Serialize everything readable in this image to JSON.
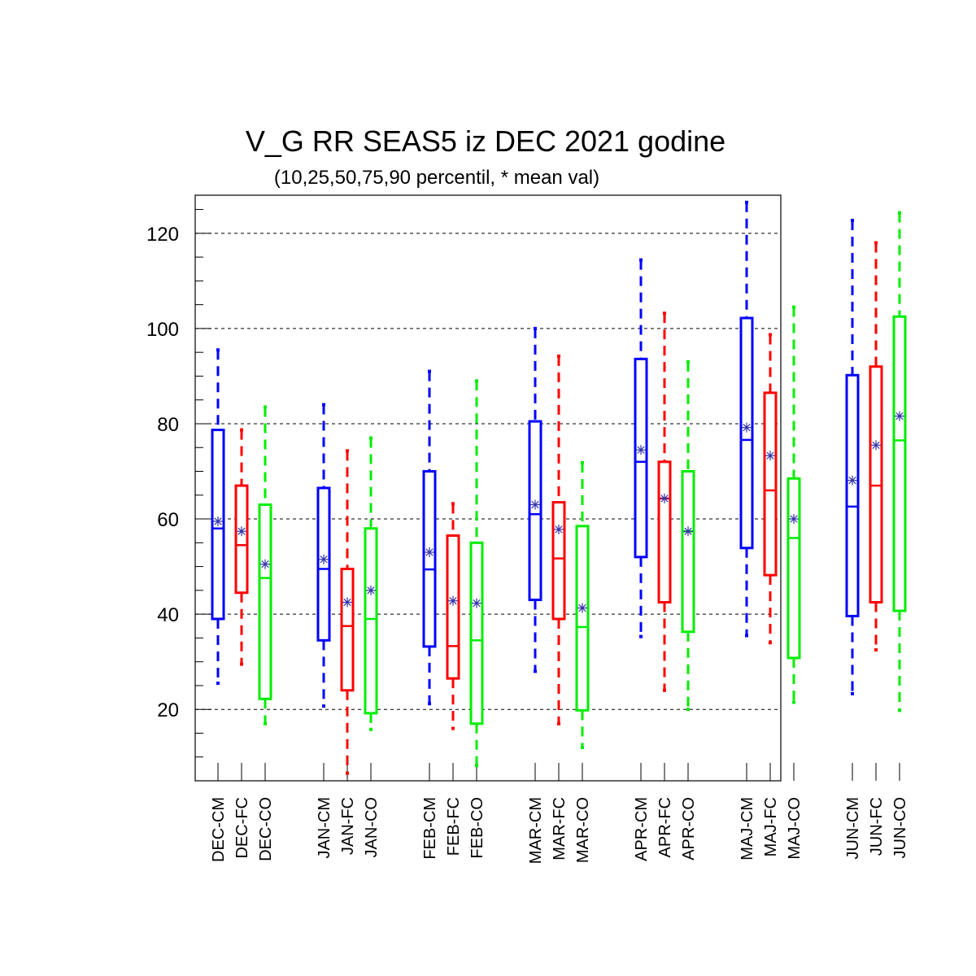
{
  "chart_data": {
    "type": "boxplot",
    "title": "V_G RR SEAS5 iz DEC 2021 godine",
    "subtitle": "(10,25,50,75,90 percentil, * mean val)",
    "ylim": [
      5,
      128
    ],
    "yticks": [
      20,
      40,
      60,
      80,
      100,
      120
    ],
    "y_tick_labels": [
      "20",
      "40",
      "60",
      "80",
      "100",
      "120"
    ],
    "grid": "horizontal dashed at major ticks",
    "colors": {
      "CM": "#0000ff",
      "FC": "#ff0000",
      "CO": "#00ee00",
      "mean_marker": "#3333aa"
    },
    "categories": [
      "DEC-CM",
      "DEC-FC",
      "DEC-CO",
      "JAN-CM",
      "JAN-FC",
      "JAN-CO",
      "FEB-CM",
      "FEB-FC",
      "FEB-CO",
      "MAR-CM",
      "MAR-FC",
      "MAR-CO",
      "APR-CM",
      "APR-FC",
      "APR-CO",
      "MAJ-CM",
      "MAJ-FC",
      "MAJ-CO",
      "JUN-CM",
      "JUN-FC",
      "JUN-CO"
    ],
    "boxes": [
      {
        "label": "DEC-CM",
        "series": "CM",
        "p10": 25.5,
        "p25": 39.0,
        "p50": 58.0,
        "p75": 78.7,
        "p90": 95.5,
        "mean": 59.5
      },
      {
        "label": "DEC-FC",
        "series": "FC",
        "p10": 29.5,
        "p25": 44.5,
        "p50": 54.5,
        "p75": 67.0,
        "p90": 78.7,
        "mean": 57.4
      },
      {
        "label": "DEC-CO",
        "series": "CO",
        "p10": 17.0,
        "p25": 22.2,
        "p50": 47.6,
        "p75": 63.0,
        "p90": 83.5,
        "mean": 50.5
      },
      {
        "label": "JAN-CM",
        "series": "CM",
        "p10": 20.7,
        "p25": 34.5,
        "p50": 49.5,
        "p75": 66.5,
        "p90": 84.0,
        "mean": 51.5
      },
      {
        "label": "JAN-FC",
        "series": "FC",
        "p10": 6.6,
        "p25": 24.0,
        "p50": 37.5,
        "p75": 49.5,
        "p90": 74.3,
        "mean": 42.5
      },
      {
        "label": "JAN-CO",
        "series": "CO",
        "p10": 15.8,
        "p25": 19.2,
        "p50": 39.0,
        "p75": 58.0,
        "p90": 77.0,
        "mean": 45.0
      },
      {
        "label": "FEB-CM",
        "series": "CM",
        "p10": 21.2,
        "p25": 33.2,
        "p50": 49.4,
        "p75": 70.0,
        "p90": 91.0,
        "mean": 53.0
      },
      {
        "label": "FEB-FC",
        "series": "FC",
        "p10": 16.0,
        "p25": 26.5,
        "p50": 33.3,
        "p75": 56.5,
        "p90": 63.2,
        "mean": 42.8
      },
      {
        "label": "FEB-CO",
        "series": "CO",
        "p10": 8.2,
        "p25": 17.0,
        "p50": 34.5,
        "p75": 55.0,
        "p90": 89.0,
        "mean": 42.3
      },
      {
        "label": "MAR-CM",
        "series": "CM",
        "p10": 28.0,
        "p25": 43.0,
        "p50": 61.0,
        "p75": 80.5,
        "p90": 100.0,
        "mean": 63.0
      },
      {
        "label": "MAR-FC",
        "series": "FC",
        "p10": 17.0,
        "p25": 39.0,
        "p50": 51.7,
        "p75": 63.5,
        "p90": 94.2,
        "mean": 57.8
      },
      {
        "label": "MAR-CO",
        "series": "CO",
        "p10": 12.0,
        "p25": 19.8,
        "p50": 37.3,
        "p75": 58.5,
        "p90": 71.8,
        "mean": 41.3
      },
      {
        "label": "APR-CM",
        "series": "CM",
        "p10": 35.3,
        "p25": 52.0,
        "p50": 72.0,
        "p75": 93.6,
        "p90": 114.4,
        "mean": 74.5
      },
      {
        "label": "APR-FC",
        "series": "FC",
        "p10": 24.0,
        "p25": 42.5,
        "p50": 64.3,
        "p75": 72.0,
        "p90": 103.2,
        "mean": 64.3
      },
      {
        "label": "APR-CO",
        "series": "CO",
        "p10": 20.0,
        "p25": 36.3,
        "p50": 57.4,
        "p75": 70.0,
        "p90": 93.0,
        "mean": 57.4
      },
      {
        "label": "MAJ-CM",
        "series": "CM",
        "p10": 35.5,
        "p25": 53.9,
        "p50": 76.6,
        "p75": 102.2,
        "p90": 126.5,
        "mean": 79.2
      },
      {
        "label": "MAJ-FC",
        "series": "FC",
        "p10": 34.0,
        "p25": 48.2,
        "p50": 66.0,
        "p75": 86.5,
        "p90": 98.7,
        "mean": 73.3
      },
      {
        "label": "MAJ-CO",
        "series": "CO",
        "p10": 21.5,
        "p25": 30.8,
        "p50": 56.0,
        "p75": 68.5,
        "p90": 104.5,
        "mean": 60.0
      },
      {
        "label": "JUN-CM",
        "series": "CM",
        "p10": 23.3,
        "p25": 39.6,
        "p50": 62.6,
        "p75": 90.2,
        "p90": 122.7,
        "mean": 68.1
      },
      {
        "label": "JUN-FC",
        "series": "FC",
        "p10": 32.5,
        "p25": 42.5,
        "p50": 67.0,
        "p75": 92.0,
        "p90": 118.0,
        "mean": 75.5
      },
      {
        "label": "JUN-CO",
        "series": "CO",
        "p10": 19.8,
        "p25": 40.7,
        "p50": 76.5,
        "p75": 102.5,
        "p90": 124.3,
        "mean": 81.6
      }
    ]
  }
}
